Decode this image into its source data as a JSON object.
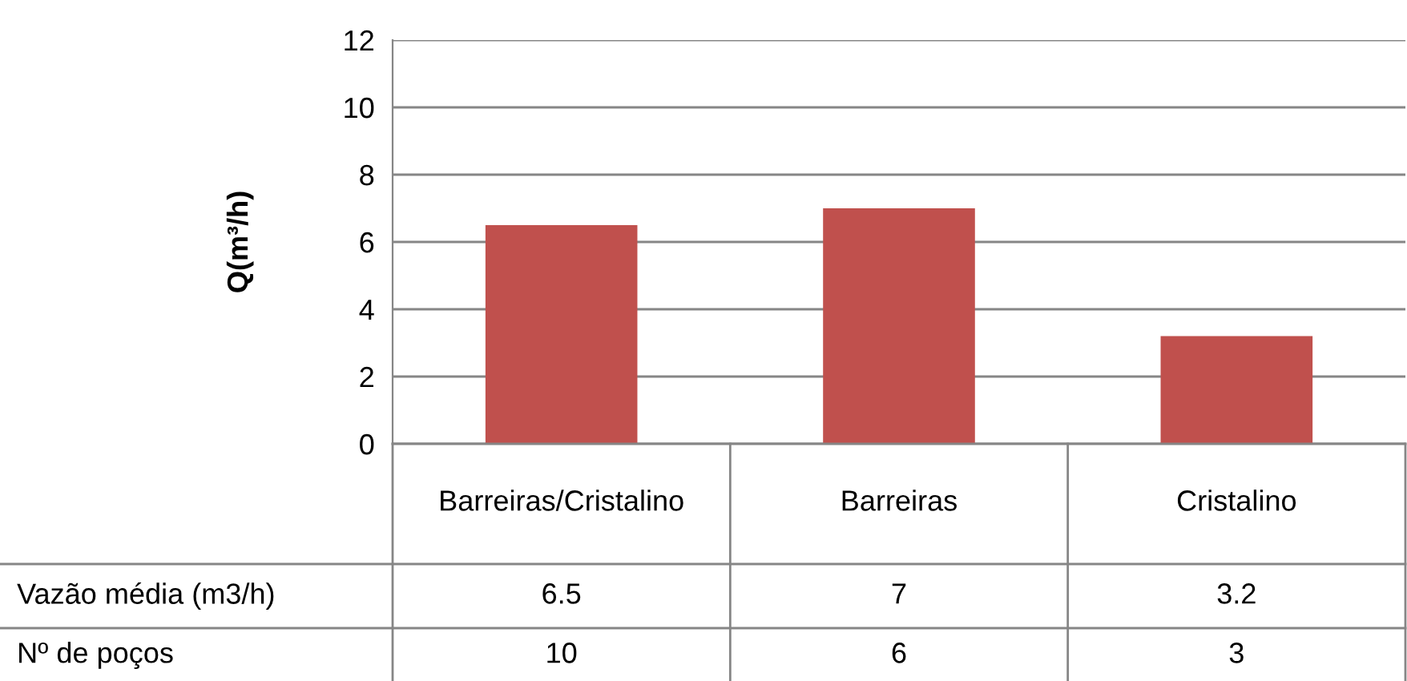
{
  "chart_data": {
    "type": "bar",
    "ylabel": "Q(m³/h)",
    "categories": [
      "Barreiras/Cristalino",
      "Barreiras",
      "Cristalino"
    ],
    "series": [
      {
        "name": "Vazão média (m3/h)",
        "color": "#c0504d",
        "values": [
          6.5,
          7,
          3.2
        ]
      }
    ],
    "data_labels": true,
    "ylim": [
      0,
      12
    ],
    "yticks": [
      0,
      2,
      4,
      6,
      8,
      10,
      12
    ],
    "grid": "y",
    "legend": false,
    "annotations": [
      "Nº de poços",
      "10",
      "6",
      "3"
    ]
  }
}
